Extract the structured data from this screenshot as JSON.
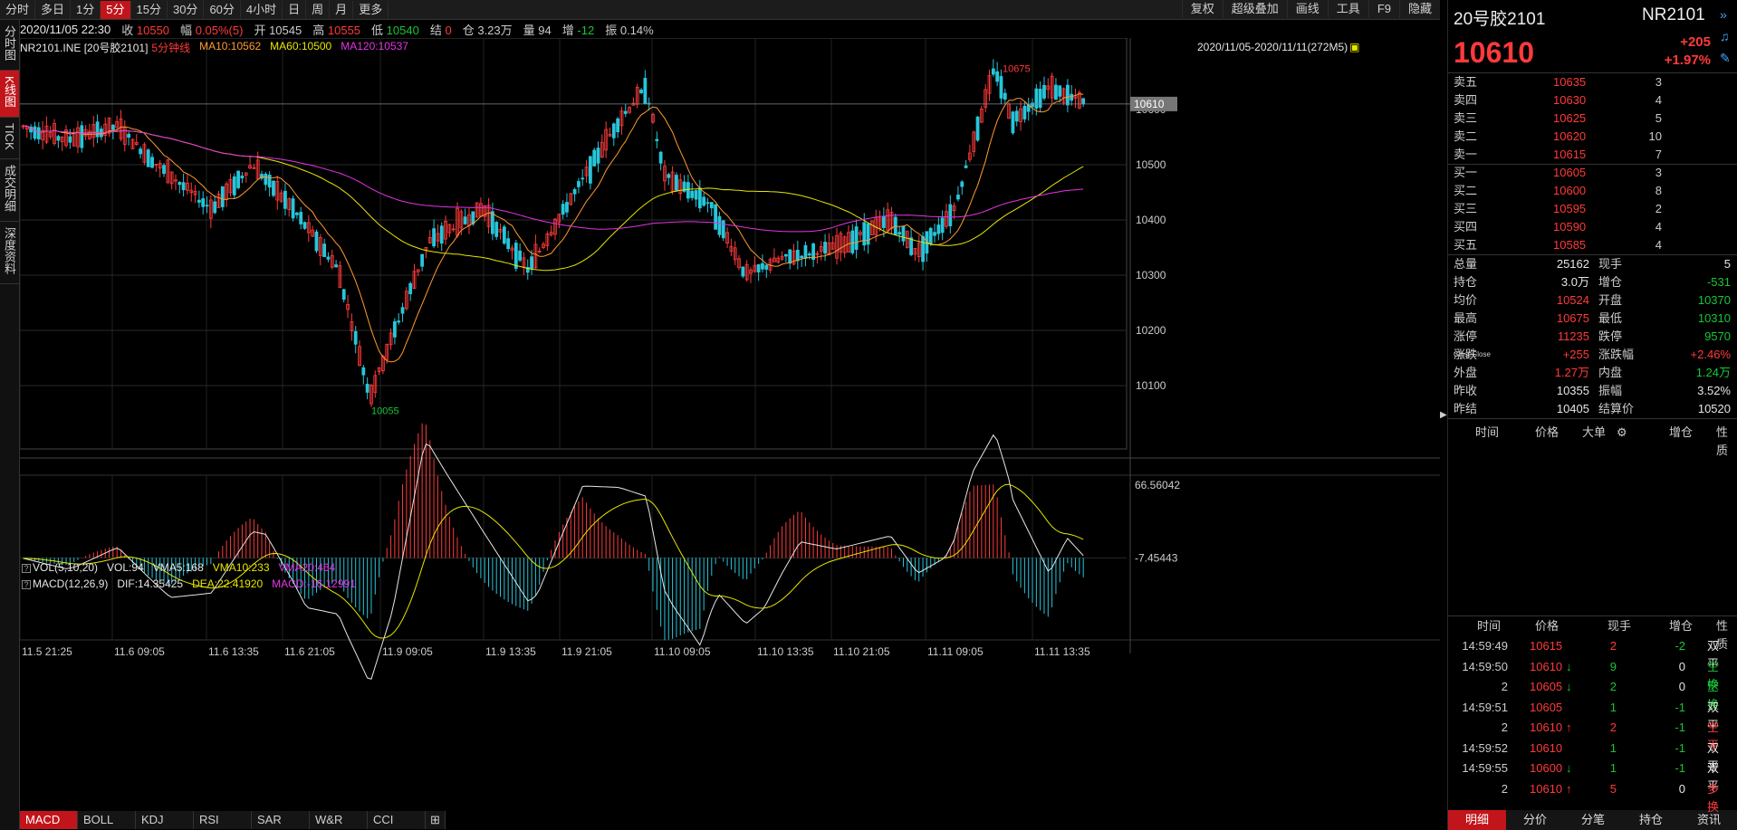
{
  "toolbar": {
    "periods": [
      "分时",
      "多日",
      "1分",
      "5分",
      "15分",
      "30分",
      "60分",
      "4小时",
      "日",
      "周",
      "月",
      "更多"
    ],
    "active": "5分",
    "tools": [
      "复权",
      "超级叠加",
      "画线",
      "工具",
      "F9",
      "隐藏"
    ]
  },
  "quote_bar": {
    "datetime": "2020/11/05 22:30",
    "close_label": "收",
    "close": "10550",
    "range_label": "幅",
    "range": "0.05%(5)",
    "open_label": "开",
    "open": "10545",
    "high_label": "高",
    "high": "10555",
    "low_label": "低",
    "low": "10540",
    "settle_label": "结",
    "settle": "0",
    "oi_label": "仓",
    "oi": "3.23万",
    "vol_label": "量",
    "vol": "94",
    "inc_label": "增",
    "inc": "-12",
    "amp_label": "振",
    "amp": "0.14%"
  },
  "left_tabs": [
    "分时图",
    "K线图",
    "TICK",
    "成交明细",
    "深度资料"
  ],
  "legend": {
    "symbol": "NR2101.INE [20号胶2101]",
    "period": "5分钟线",
    "ma10": "MA10:10562",
    "ma60": "MA60:10500",
    "ma120": "MA120:10537",
    "range": "2020/11/05-2020/11/11(272M5)"
  },
  "vol_legend": {
    "name": "VOL(5,10,20)",
    "vol": "VOL:94",
    "vma5": "VMA5:168",
    "vma10": "VMA10:233",
    "vma20": "VMA20:464"
  },
  "macd_legend": {
    "name": "MACD(12,26,9)",
    "dif": "DIF:14.35425",
    "dea": "DEA:22.41920",
    "macd": "MACD:-16.12991"
  },
  "price_axis": {
    "ticks": [
      10500,
      10400,
      10300,
      10200,
      10100
    ],
    "current": "10610",
    "cur_val": 10610,
    "top_partial": "10600"
  },
  "macd_axis": {
    "top": "66.56042",
    "mid": "-7.45443"
  },
  "annotations": {
    "high": "10675",
    "low": "10055"
  },
  "time_axis": [
    "11.5 21:25",
    "11.6 09:05",
    "11.6 13:35",
    "11.6 21:05",
    "11.9 09:05",
    "11.9 13:35",
    "11.9 21:05",
    "11.10 09:05",
    "11.10 13:35",
    "11.10 21:05",
    "11.11 09:05",
    "11.11 13:35"
  ],
  "indicator_tabs": [
    "MACD",
    "BOLL",
    "KDJ",
    "RSI",
    "SAR",
    "W&R",
    "CCI"
  ],
  "instrument": {
    "name": "20号胶2101",
    "code": "NR2101",
    "price": "10610",
    "change": "+205",
    "change_pct": "+1.97%"
  },
  "asks": [
    {
      "label": "卖五",
      "price": "10635",
      "vol": "3"
    },
    {
      "label": "卖四",
      "price": "10630",
      "vol": "4"
    },
    {
      "label": "卖三",
      "price": "10625",
      "vol": "5"
    },
    {
      "label": "卖二",
      "price": "10620",
      "vol": "10"
    },
    {
      "label": "卖一",
      "price": "10615",
      "vol": "7"
    }
  ],
  "bids": [
    {
      "label": "买一",
      "price": "10605",
      "vol": "3"
    },
    {
      "label": "买二",
      "price": "10600",
      "vol": "8"
    },
    {
      "label": "买三",
      "price": "10595",
      "vol": "2"
    },
    {
      "label": "买四",
      "price": "10590",
      "vol": "4"
    },
    {
      "label": "买五",
      "price": "10585",
      "vol": "4"
    }
  ],
  "stats": [
    {
      "l1": "总量",
      "v1": "25162",
      "c1": "white",
      "l2": "现手",
      "v2": "5",
      "c2": "white"
    },
    {
      "l1": "持仓",
      "v1": "3.0万",
      "c1": "white",
      "l2": "增仓",
      "v2": "-531",
      "c2": "green"
    },
    {
      "l1": "均价",
      "v1": "10524",
      "c1": "red",
      "l2": "开盘",
      "v2": "10370",
      "c2": "green"
    },
    {
      "l1": "最高",
      "v1": "10675",
      "c1": "red",
      "l2": "最低",
      "v2": "10310",
      "c2": "green"
    },
    {
      "l1": "涨停",
      "v1": "11235",
      "c1": "red",
      "l2": "跌停",
      "v2": "9570",
      "c2": "green"
    },
    {
      "l1": "涨跌",
      "v1": "+255",
      "c1": "red",
      "l2": "涨跌幅",
      "v2": "+2.46%",
      "c2": "red"
    },
    {
      "l1": "外盘",
      "v1": "1.27万",
      "c1": "red",
      "l2": "内盘",
      "v2": "1.24万",
      "c2": "green"
    },
    {
      "l1": "昨收",
      "v1": "10355",
      "c1": "white",
      "l2": "振幅",
      "v2": "3.52%",
      "c2": "white"
    },
    {
      "l1": "昨结",
      "v1": "10405",
      "c1": "white",
      "l2": "结算价",
      "v2": "10520",
      "c2": "white"
    }
  ],
  "close_sup": "Close",
  "big_order_header": [
    "时间",
    "价格",
    "大单",
    "增仓",
    "性质"
  ],
  "tick_header": [
    "时间",
    "价格",
    "现手",
    "增仓",
    "性质"
  ],
  "ticks": [
    {
      "time": "14:59:49",
      "price": "10615",
      "arrow": "",
      "hand": "2",
      "hc": "red",
      "inc": "-2",
      "ic": "green",
      "nature": "双平",
      "nc": "white"
    },
    {
      "time": "14:59:50",
      "price": "10610",
      "arrow": "↓",
      "hand": "9",
      "hc": "green",
      "inc": "0",
      "ic": "white",
      "nature": "空换",
      "nc": "green"
    },
    {
      "time": "2",
      "price": "10605",
      "arrow": "↓",
      "hand": "2",
      "hc": "green",
      "inc": "0",
      "ic": "white",
      "nature": "空换",
      "nc": "green"
    },
    {
      "time": "14:59:51",
      "price": "10605",
      "arrow": "",
      "hand": "1",
      "hc": "green",
      "inc": "-1",
      "ic": "green",
      "nature": "双平",
      "nc": "white"
    },
    {
      "time": "2",
      "price": "10610",
      "arrow": "↑",
      "hand": "2",
      "hc": "red",
      "inc": "-1",
      "ic": "green",
      "nature": "空平",
      "nc": "red"
    },
    {
      "time": "14:59:52",
      "price": "10610",
      "arrow": "",
      "hand": "1",
      "hc": "green",
      "inc": "-1",
      "ic": "green",
      "nature": "双平",
      "nc": "white"
    },
    {
      "time": "14:59:55",
      "price": "10600",
      "arrow": "↓",
      "hand": "1",
      "hc": "green",
      "inc": "-1",
      "ic": "green",
      "nature": "双平",
      "nc": "white"
    },
    {
      "time": "2",
      "price": "10610",
      "arrow": "↑",
      "hand": "5",
      "hc": "red",
      "inc": "0",
      "ic": "white",
      "nature": "多换",
      "nc": "red"
    }
  ],
  "panel_tabs": [
    "明细",
    "分价",
    "分笔",
    "持仓",
    "资讯"
  ],
  "colors": {
    "up": "#ff3a3a",
    "down": "#26c6da",
    "ma10": "#ff9a2e",
    "ma60": "#e6e600",
    "ma120": "#e433e4"
  }
}
